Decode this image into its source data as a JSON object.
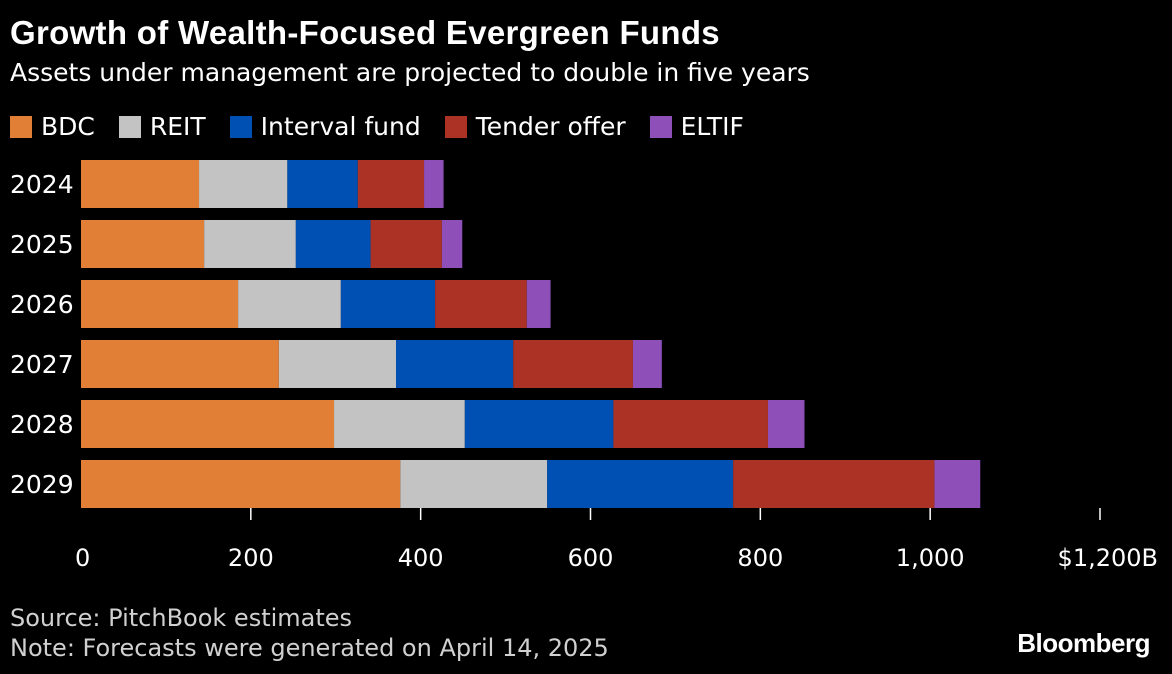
{
  "header": {
    "title": "Growth of Wealth-Focused Evergreen Funds",
    "subtitle": "Assets under management are projected to double in five years"
  },
  "footer": {
    "source": "Source: PitchBook estimates",
    "note": "Note: Forecasts were generated on April 14, 2025",
    "logo": "Bloomberg"
  },
  "colors": {
    "background": "#000000",
    "text": "#ffffff",
    "BDC": "#e07f35",
    "REIT": "#c3c3c3",
    "Interval fund": "#0050b4",
    "Tender offer": "#ab3224",
    "ELTIF": "#8e4fb8"
  },
  "chart_data": {
    "type": "bar",
    "orientation": "horizontal",
    "stacked": true,
    "categories": [
      "2024",
      "2025",
      "2026",
      "2027",
      "2028",
      "2029"
    ],
    "series": [
      {
        "name": "BDC",
        "values": [
          139,
          145,
          185,
          233,
          298,
          376
        ]
      },
      {
        "name": "REIT",
        "values": [
          104,
          108,
          121,
          138,
          154,
          173
        ]
      },
      {
        "name": "Interval fund",
        "values": [
          83,
          88,
          111,
          138,
          175,
          219
        ]
      },
      {
        "name": "Tender offer",
        "values": [
          78,
          84,
          108,
          141,
          182,
          237
        ]
      },
      {
        "name": "ELTIF",
        "values": [
          23,
          24,
          28,
          34,
          43,
          54
        ]
      }
    ],
    "x_ticks": [
      "0",
      "200",
      "400",
      "600",
      "800",
      "1,000",
      "$1,200B"
    ],
    "x_tick_values": [
      0,
      200,
      400,
      600,
      800,
      1000,
      1200
    ],
    "xlim": [
      0,
      1200
    ],
    "legend_position": "top-left",
    "grid": false
  }
}
